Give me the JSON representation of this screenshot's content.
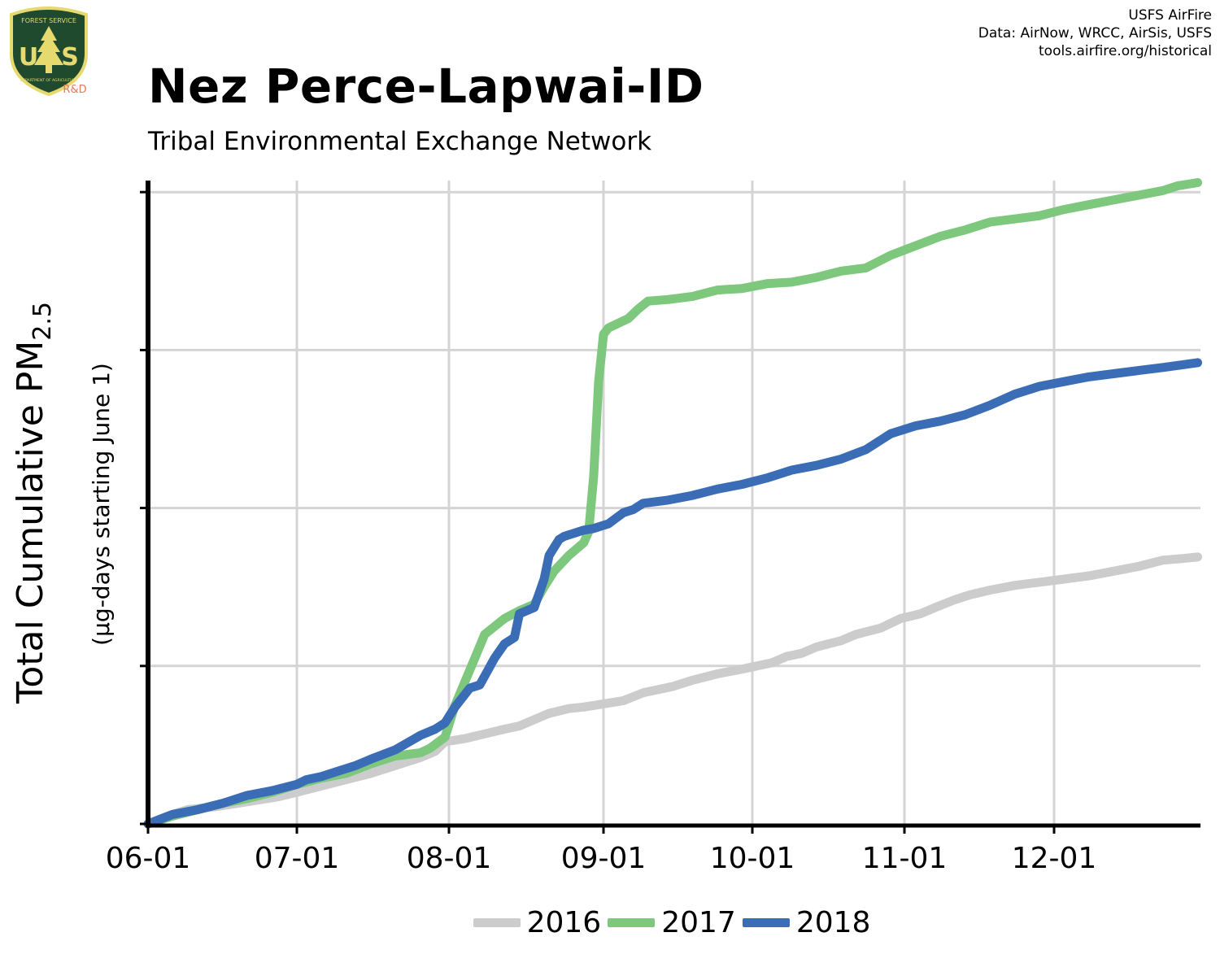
{
  "header": {
    "title": "Nez Perce-Lapwai-ID",
    "subtitle": "Tribal Environmental Exchange Network",
    "credits": [
      "USFS AirFire",
      "Data: AirNow, WRCC, AirSis, USFS",
      "tools.airfire.org/historical"
    ]
  },
  "logo": {
    "icon": "usfs-shield-icon",
    "text_top": "FOREST SERVICE",
    "text_left": "U",
    "text_right": "S",
    "text_bottom": "DEPARTMENT OF AGRICULTURE",
    "badge": "R&D",
    "colors": {
      "shield": "#1f4a2e",
      "border": "#e6d96e",
      "badge": "#e87461"
    }
  },
  "chart_data": {
    "type": "line",
    "title": "Nez Perce-Lapwai-ID",
    "subtitle": "Tribal Environmental Exchange Network",
    "ylabel": "Total Cumulative PM",
    "ylabel_sub": "2.5",
    "ylabel_units": "(µg-days starting June 1)",
    "xlabel": "",
    "x_ticks": [
      "06-01",
      "07-01",
      "08-01",
      "09-01",
      "10-01",
      "11-01",
      "12-01"
    ],
    "y_ticks_labeled": false,
    "y_ticks": [
      0,
      1,
      2,
      3,
      4
    ],
    "xlim": [
      0,
      212
    ],
    "ylim": [
      0,
      4.08
    ],
    "grid": true,
    "legend_position": "bottom-center",
    "series": [
      {
        "name": "2016",
        "color": "#cccccc",
        "x": [
          0,
          4,
          8,
          14,
          20,
          26,
          30,
          35,
          40,
          45,
          50,
          55,
          58,
          60,
          64,
          68,
          72,
          75,
          78,
          81,
          85,
          88,
          92,
          96,
          100,
          103,
          106,
          110,
          115,
          120,
          123,
          126,
          129,
          132,
          135,
          140,
          143,
          148,
          152,
          156,
          159,
          163,
          166,
          170,
          175,
          180,
          185,
          190,
          195,
          200,
          205,
          209,
          212
        ],
        "y": [
          0,
          0.05,
          0.09,
          0.11,
          0.14,
          0.17,
          0.2,
          0.24,
          0.28,
          0.32,
          0.37,
          0.42,
          0.46,
          0.52,
          0.54,
          0.57,
          0.6,
          0.62,
          0.66,
          0.7,
          0.73,
          0.74,
          0.76,
          0.78,
          0.83,
          0.85,
          0.87,
          0.91,
          0.95,
          0.98,
          1.0,
          1.02,
          1.06,
          1.08,
          1.12,
          1.16,
          1.2,
          1.24,
          1.3,
          1.33,
          1.37,
          1.42,
          1.45,
          1.48,
          1.51,
          1.53,
          1.55,
          1.57,
          1.6,
          1.63,
          1.67,
          1.68,
          1.69
        ]
      },
      {
        "name": "2017",
        "color": "#7dc87c",
        "x": [
          0,
          5,
          10,
          15,
          20,
          25,
          30,
          35,
          40,
          45,
          50,
          55,
          57,
          60,
          62,
          64,
          66,
          68,
          72,
          75,
          78,
          80,
          82,
          85,
          88,
          89,
          90,
          91,
          92,
          93,
          95,
          97,
          99,
          101,
          105,
          110,
          115,
          120,
          125,
          130,
          135,
          140,
          145,
          150,
          155,
          160,
          165,
          170,
          175,
          180,
          185,
          190,
          195,
          200,
          205,
          208,
          210,
          212
        ],
        "y": [
          0,
          0.05,
          0.09,
          0.13,
          0.16,
          0.2,
          0.25,
          0.29,
          0.32,
          0.38,
          0.43,
          0.45,
          0.48,
          0.55,
          0.75,
          0.9,
          1.05,
          1.2,
          1.3,
          1.35,
          1.39,
          1.5,
          1.6,
          1.7,
          1.78,
          1.85,
          2.2,
          2.8,
          3.1,
          3.14,
          3.17,
          3.2,
          3.26,
          3.31,
          3.32,
          3.34,
          3.38,
          3.39,
          3.42,
          3.43,
          3.46,
          3.5,
          3.52,
          3.6,
          3.66,
          3.72,
          3.76,
          3.81,
          3.83,
          3.85,
          3.89,
          3.92,
          3.95,
          3.98,
          4.01,
          4.04,
          4.05,
          4.06
        ]
      },
      {
        "name": "2018",
        "color": "#3a6db5",
        "x": [
          0,
          5,
          10,
          15,
          20,
          25,
          30,
          32,
          35,
          38,
          42,
          45,
          50,
          55,
          58,
          60,
          62,
          65,
          67,
          70,
          72,
          74,
          75,
          78,
          80,
          81,
          83,
          84,
          85,
          86,
          88,
          90,
          93,
          96,
          98,
          100,
          105,
          110,
          115,
          120,
          125,
          130,
          135,
          140,
          145,
          150,
          155,
          160,
          165,
          170,
          175,
          180,
          185,
          190,
          195,
          200,
          205,
          212
        ],
        "y": [
          0,
          0.06,
          0.09,
          0.13,
          0.18,
          0.21,
          0.25,
          0.28,
          0.3,
          0.33,
          0.37,
          0.41,
          0.47,
          0.56,
          0.6,
          0.64,
          0.74,
          0.86,
          0.88,
          1.05,
          1.14,
          1.18,
          1.33,
          1.37,
          1.55,
          1.7,
          1.8,
          1.82,
          1.83,
          1.84,
          1.86,
          1.87,
          1.9,
          1.97,
          1.99,
          2.03,
          2.05,
          2.08,
          2.12,
          2.15,
          2.19,
          2.24,
          2.27,
          2.31,
          2.37,
          2.47,
          2.52,
          2.55,
          2.59,
          2.65,
          2.72,
          2.77,
          2.8,
          2.83,
          2.85,
          2.87,
          2.89,
          2.92
        ]
      }
    ]
  }
}
